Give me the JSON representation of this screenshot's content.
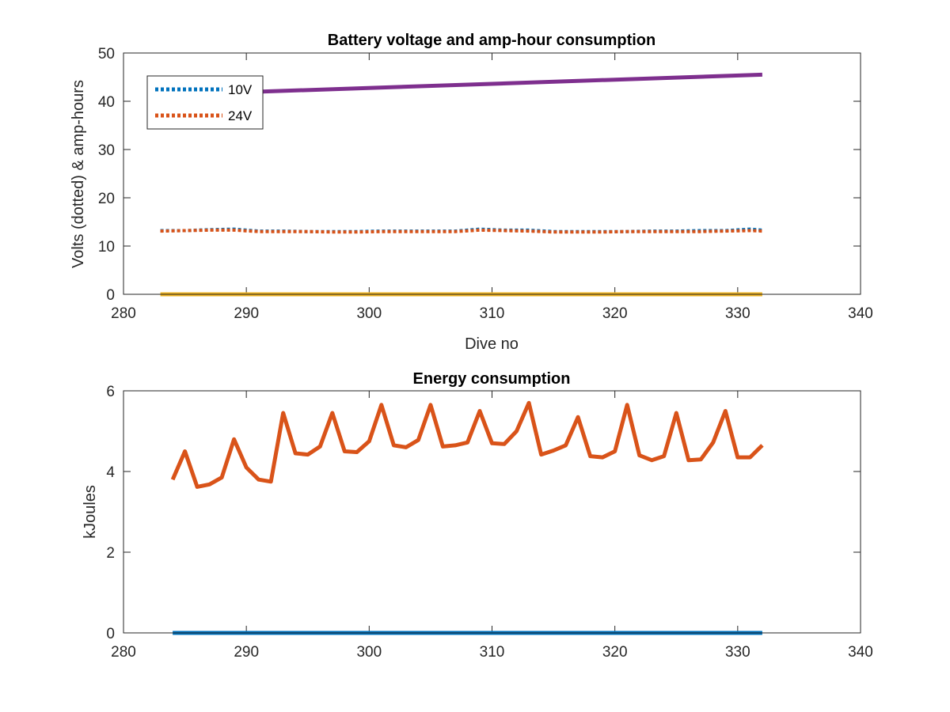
{
  "chart_data": [
    {
      "type": "line",
      "title": "Battery voltage and amp-hour consumption",
      "xlabel": "Dive no",
      "ylabel": "Volts (dotted) & amp-hours",
      "xlim": [
        280,
        340
      ],
      "ylim": [
        0,
        50
      ],
      "xticks": [
        "280",
        "290",
        "300",
        "310",
        "320",
        "330",
        "340"
      ],
      "yticks": [
        "0",
        "10",
        "20",
        "30",
        "40",
        "50"
      ],
      "grid": false,
      "legend_location": "top-left",
      "series": [
        {
          "name": "10V",
          "color": "#0072BD",
          "style": "dotted",
          "in_legend": true,
          "x": [
            283,
            285,
            287,
            289,
            291,
            293,
            295,
            297,
            299,
            301,
            303,
            305,
            307,
            309,
            311,
            313,
            315,
            317,
            319,
            321,
            323,
            325,
            327,
            329,
            331,
            332
          ],
          "y": [
            13.2,
            13.2,
            13.4,
            13.5,
            13.1,
            13.1,
            13.0,
            13.0,
            13.0,
            13.1,
            13.1,
            13.1,
            13.1,
            13.5,
            13.3,
            13.3,
            13.0,
            13.0,
            13.0,
            13.0,
            13.1,
            13.1,
            13.2,
            13.2,
            13.5,
            13.3
          ]
        },
        {
          "name": "24V",
          "color": "#D95319",
          "style": "dotted",
          "in_legend": true,
          "x": [
            283,
            285,
            287,
            289,
            291,
            293,
            295,
            297,
            299,
            301,
            303,
            305,
            307,
            309,
            311,
            313,
            315,
            317,
            319,
            321,
            323,
            325,
            327,
            329,
            331,
            332
          ],
          "y": [
            13.1,
            13.2,
            13.3,
            13.3,
            13.0,
            13.0,
            13.0,
            12.9,
            12.9,
            13.0,
            13.0,
            13.0,
            13.0,
            13.3,
            13.2,
            13.1,
            12.9,
            12.9,
            12.9,
            13.0,
            13.0,
            13.0,
            13.0,
            13.1,
            13.2,
            13.1
          ]
        },
        {
          "color": "#EDB120",
          "style": "solid",
          "in_legend": false,
          "x": [
            283,
            332
          ],
          "y": [
            0,
            0
          ]
        },
        {
          "color": "#7E2F8E",
          "style": "solid",
          "in_legend": false,
          "x": [
            283,
            332
          ],
          "y": [
            41.3,
            45.5
          ]
        }
      ]
    },
    {
      "type": "line",
      "title": "Energy consumption",
      "xlabel": "",
      "ylabel": "kJoules",
      "xlim": [
        280,
        340
      ],
      "ylim": [
        0,
        6
      ],
      "xticks": [
        "280",
        "290",
        "300",
        "310",
        "320",
        "330",
        "340"
      ],
      "yticks": [
        "0",
        "2",
        "4",
        "6"
      ],
      "grid": false,
      "series": [
        {
          "color": "#0072BD",
          "style": "solid",
          "x": [
            284,
            332
          ],
          "y": [
            0,
            0
          ]
        },
        {
          "color": "#D95319",
          "style": "solid",
          "x": [
            284,
            285,
            286,
            287,
            288,
            289,
            290,
            291,
            292,
            293,
            294,
            295,
            296,
            297,
            298,
            299,
            300,
            301,
            302,
            303,
            304,
            305,
            306,
            307,
            308,
            309,
            310,
            311,
            312,
            313,
            314,
            315,
            316,
            317,
            318,
            319,
            320,
            321,
            322,
            323,
            324,
            325,
            326,
            327,
            328,
            329,
            330,
            331,
            332
          ],
          "y": [
            3.8,
            4.5,
            3.62,
            3.68,
            3.85,
            4.8,
            4.1,
            3.8,
            3.75,
            5.45,
            4.45,
            4.42,
            4.62,
            5.45,
            4.5,
            4.48,
            4.75,
            5.65,
            4.65,
            4.6,
            4.78,
            5.65,
            4.62,
            4.65,
            4.72,
            5.5,
            4.7,
            4.68,
            5.0,
            5.7,
            4.42,
            4.52,
            4.65,
            5.35,
            4.38,
            4.35,
            4.5,
            5.65,
            4.4,
            4.28,
            4.38,
            5.45,
            4.28,
            4.3,
            4.72,
            5.5,
            4.35,
            4.35,
            4.65
          ]
        }
      ]
    }
  ]
}
